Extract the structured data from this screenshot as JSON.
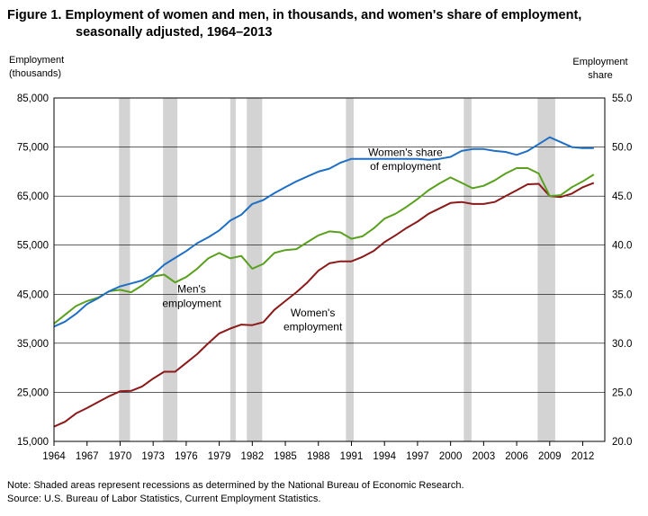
{
  "figure": {
    "title_line1": "Figure 1. Employment of women and men, in thousands, and women's share of employment,",
    "title_line2": "seasonally adjusted, 1964–2013",
    "left_axis_title_line1": "Employment",
    "left_axis_title_line2": "(thousands)",
    "right_axis_title_line1": "Employment",
    "right_axis_title_line2": "share",
    "note": "Note: Shaded areas represent recessions as determined by the National Bureau of Economic Research.",
    "source": "Source: U.S. Bureau of Labor Statistics, Current Employment Statistics."
  },
  "colors": {
    "women": "#8b1a1a",
    "men": "#5aa01e",
    "share": "#1f6fc4",
    "recession": "#d3d3d3",
    "grid": "#000000"
  },
  "chart_data": {
    "type": "line",
    "title": "Figure 1. Employment of women and men, in thousands, and women's share of employment, seasonally adjusted, 1964–2013",
    "xlabel": "",
    "ylabel": "Employment (thousands)",
    "y2label": "Employment share",
    "xlim": [
      1964,
      2014
    ],
    "ylim": [
      15000,
      85000
    ],
    "y2lim": [
      20.0,
      55.0
    ],
    "x_ticks": [
      "1964",
      "1967",
      "1970",
      "1973",
      "1976",
      "1979",
      "1982",
      "1985",
      "1988",
      "1991",
      "1994",
      "1997",
      "2000",
      "2003",
      "2006",
      "2009",
      "2012"
    ],
    "y_ticks": [
      "15,000",
      "25,000",
      "35,000",
      "45,000",
      "55,000",
      "65,000",
      "75,000",
      "85,000"
    ],
    "y2_ticks": [
      "20.0",
      "25.0",
      "30.0",
      "35.0",
      "40.0",
      "45.0",
      "50.0",
      "55.0"
    ],
    "grid": "horizontal",
    "recessions": [
      [
        1969.9,
        1970.9
      ],
      [
        1973.9,
        1975.2
      ],
      [
        1980.0,
        1980.5
      ],
      [
        1981.5,
        1982.9
      ],
      [
        1990.5,
        1991.2
      ],
      [
        2001.2,
        2001.9
      ],
      [
        2007.9,
        2009.5
      ]
    ],
    "series": [
      {
        "name": "Women's employment",
        "axis": "left",
        "x": [
          1964,
          1965,
          1966,
          1967,
          1968,
          1969,
          1970,
          1971,
          1972,
          1973,
          1974,
          1975,
          1976,
          1977,
          1978,
          1979,
          1980,
          1981,
          1982,
          1983,
          1984,
          1985,
          1986,
          1987,
          1988,
          1989,
          1990,
          1991,
          1992,
          1993,
          1994,
          1995,
          1996,
          1997,
          1998,
          1999,
          2000,
          2001,
          2002,
          2003,
          2004,
          2005,
          2006,
          2007,
          2008,
          2009,
          2010,
          2011,
          2012,
          2013
        ],
        "values": [
          18000,
          19000,
          20700,
          21800,
          23000,
          24200,
          25200,
          25300,
          26200,
          27800,
          29200,
          29200,
          31000,
          32800,
          35000,
          37000,
          38000,
          38800,
          38700,
          39300,
          41800,
          43600,
          45400,
          47400,
          49800,
          51300,
          51700,
          51700,
          52600,
          53800,
          55600,
          57000,
          58500,
          59800,
          61400,
          62500,
          63600,
          63800,
          63400,
          63400,
          63800,
          65000,
          66200,
          67400,
          67500,
          65000,
          64800,
          65500,
          66800,
          67700
        ]
      },
      {
        "name": "Men's employment",
        "axis": "left",
        "x": [
          1964,
          1965,
          1966,
          1967,
          1968,
          1969,
          1970,
          1971,
          1972,
          1973,
          1974,
          1975,
          1976,
          1977,
          1978,
          1979,
          1980,
          1981,
          1982,
          1983,
          1984,
          1985,
          1986,
          1987,
          1988,
          1989,
          1990,
          1991,
          1992,
          1993,
          1994,
          1995,
          1996,
          1997,
          1998,
          1999,
          2000,
          2001,
          2002,
          2003,
          2004,
          2005,
          2006,
          2007,
          2008,
          2009,
          2010,
          2011,
          2012,
          2013
        ],
        "values": [
          39000,
          40800,
          42600,
          43600,
          44300,
          45600,
          45900,
          45400,
          46800,
          48600,
          49000,
          47400,
          48500,
          50200,
          52300,
          53400,
          52300,
          52800,
          50200,
          51200,
          53400,
          54000,
          54200,
          55600,
          57000,
          57800,
          57600,
          56300,
          56800,
          58400,
          60400,
          61400,
          62800,
          64400,
          66200,
          67600,
          68800,
          67700,
          66600,
          67100,
          68200,
          69600,
          70700,
          70700,
          69600,
          65000,
          65200,
          66800,
          68000,
          69400
        ]
      },
      {
        "name": "Women's share of employment",
        "axis": "right",
        "x": [
          1964,
          1965,
          1966,
          1967,
          1968,
          1969,
          1970,
          1971,
          1972,
          1973,
          1974,
          1975,
          1976,
          1977,
          1978,
          1979,
          1980,
          1981,
          1982,
          1983,
          1984,
          1985,
          1986,
          1987,
          1988,
          1989,
          1990,
          1991,
          1992,
          1993,
          1994,
          1995,
          1996,
          1997,
          1998,
          1999,
          2000,
          2001,
          2002,
          2003,
          2004,
          2005,
          2006,
          2007,
          2008,
          2009,
          2010,
          2011,
          2012,
          2013
        ],
        "values": [
          31.7,
          32.2,
          33.0,
          34.0,
          34.6,
          35.3,
          35.8,
          36.1,
          36.4,
          37.0,
          38.0,
          38.7,
          39.4,
          40.2,
          40.8,
          41.5,
          42.5,
          43.1,
          44.2,
          44.6,
          45.3,
          45.9,
          46.5,
          47.0,
          47.5,
          47.8,
          48.4,
          48.8,
          48.8,
          48.8,
          48.8,
          48.8,
          48.8,
          48.8,
          48.7,
          48.8,
          49.0,
          49.6,
          49.8,
          49.8,
          49.6,
          49.5,
          49.2,
          49.6,
          50.3,
          51.0,
          50.5,
          50.0,
          49.9,
          49.9
        ]
      }
    ],
    "annotations": [
      {
        "text": "Women's share",
        "x": 1995.9,
        "y": 73200
      },
      {
        "text": "of employment",
        "x": 1995.9,
        "y": 70300
      },
      {
        "text": "Men's",
        "x": 1976.5,
        "y": 45300
      },
      {
        "text": "employment",
        "x": 1976.5,
        "y": 42400
      },
      {
        "text": "Women's",
        "x": 1987.5,
        "y": 40500
      },
      {
        "text": "employment",
        "x": 1987.5,
        "y": 37600
      }
    ]
  }
}
